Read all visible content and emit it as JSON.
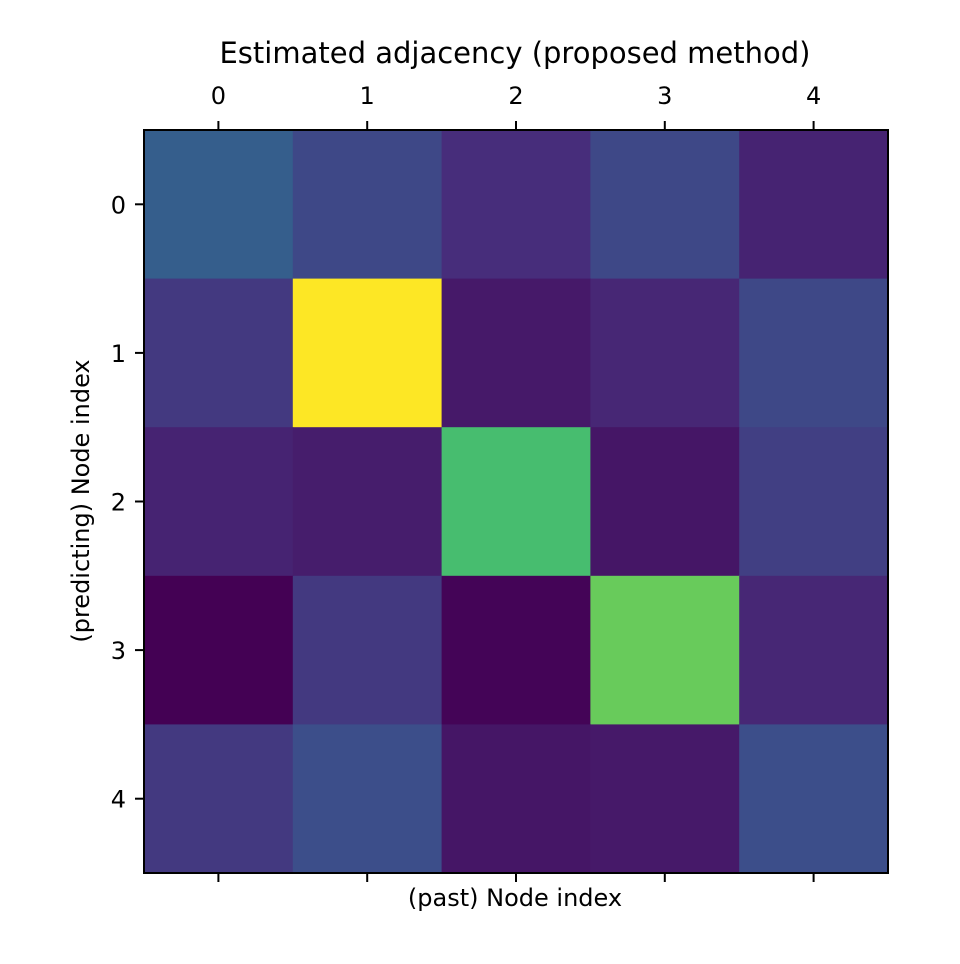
{
  "chart_data": {
    "type": "heatmap",
    "title": "Estimated adjacency (proposed method)",
    "xlabel": "(past) Node index",
    "ylabel": "(predicting) Node index",
    "x_categories": [
      "0",
      "1",
      "2",
      "3",
      "4"
    ],
    "y_categories": [
      "0",
      "1",
      "2",
      "3",
      "4"
    ],
    "x_tick_labels_position": "top",
    "colormap": "viridis",
    "colorbar": false,
    "grid": false,
    "value_range": [
      0,
      1
    ],
    "values": [
      [
        0.3,
        0.22,
        0.13,
        0.22,
        0.1
      ],
      [
        0.17,
        1.0,
        0.07,
        0.11,
        0.22
      ],
      [
        0.1,
        0.08,
        0.7,
        0.06,
        0.19
      ],
      [
        0.0,
        0.17,
        0.01,
        0.77,
        0.11
      ],
      [
        0.17,
        0.24,
        0.06,
        0.07,
        0.24
      ]
    ]
  }
}
